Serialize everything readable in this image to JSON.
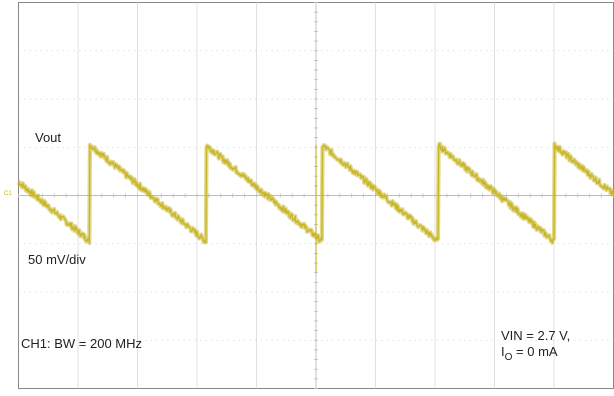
{
  "chart_data": {
    "type": "line",
    "title": "",
    "xlabel": "",
    "ylabel": "",
    "grid": true,
    "x_divisions": 10,
    "y_divisions": 8,
    "ylim_div": [
      -4,
      4
    ],
    "series": [
      {
        "name": "Vout",
        "color": "#c8b629",
        "units": "div",
        "period_div": 1.95,
        "peak_div": 1.05,
        "trough_div": -0.95,
        "first_jump_div": 1.2
      }
    ],
    "channel_marker": "C1",
    "annotations": {
      "trace_label": "Vout",
      "scale": "50 mV/div",
      "bandwidth": "CH1: BW = 200 MHz",
      "vin": "VIN = 2.7 V,",
      "io_main": "I",
      "io_sub": "O",
      "io_rest": " = 0 mA"
    }
  }
}
